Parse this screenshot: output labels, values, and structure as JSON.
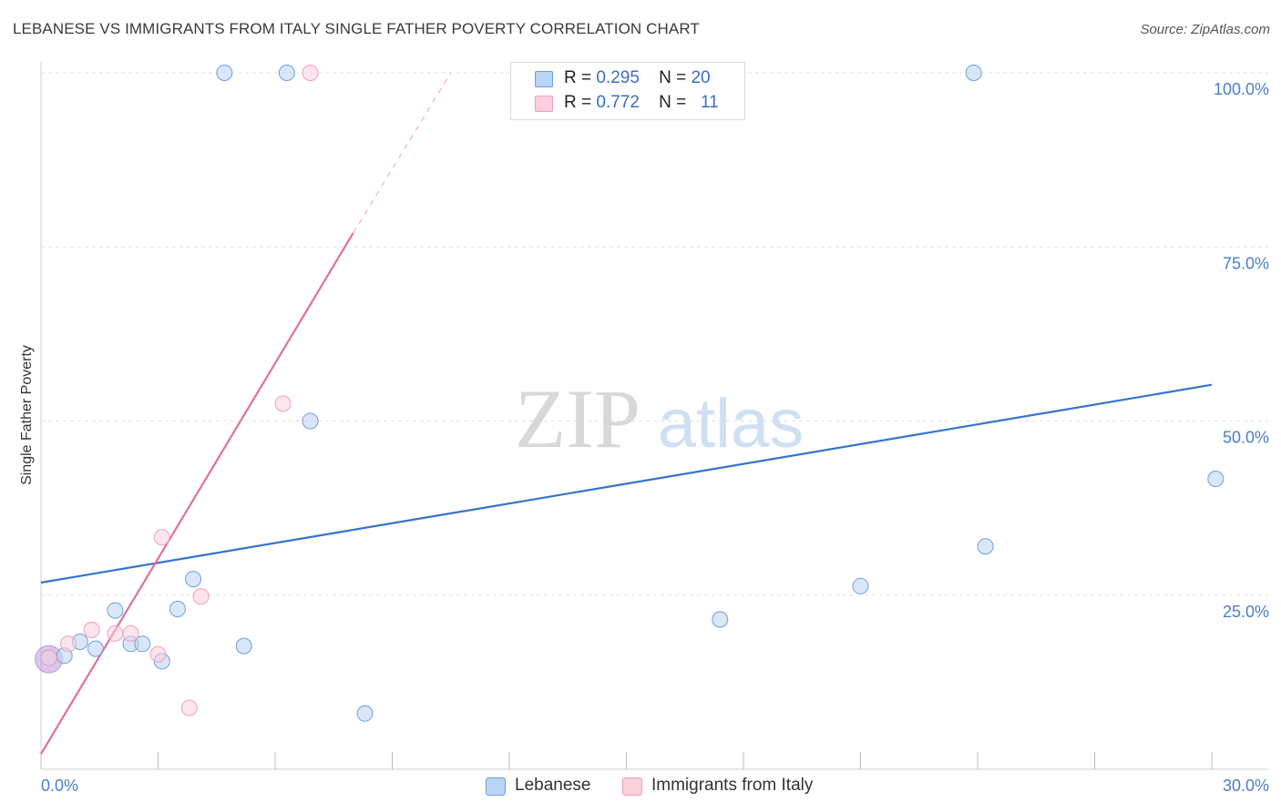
{
  "title": "LEBANESE VS IMMIGRANTS FROM ITALY SINGLE FATHER POVERTY CORRELATION CHART",
  "source": "Source: ZipAtlas.com",
  "watermark": {
    "zip": "ZIP",
    "atlas": "atlas"
  },
  "legend": {
    "r_label": "R =",
    "n_label": "N =",
    "rows": [
      {
        "r": "0.295",
        "n": "20"
      },
      {
        "r": "0.772",
        "n": "11"
      }
    ]
  },
  "chart_data": {
    "type": "scatter",
    "ylabel": "Single Father Poverty",
    "xlim": [
      0,
      30
    ],
    "ylim": [
      0,
      100
    ],
    "x_tick_labels": [
      "0.0%",
      "30.0%"
    ],
    "y_ticks": [
      25,
      50,
      75,
      100
    ],
    "y_tick_labels": [
      "25.0%",
      "50.0%",
      "75.0%",
      "100.0%"
    ],
    "grid": true,
    "legend_position": "top-center",
    "series": [
      {
        "name": "Lebanese",
        "color": "#6b9fe0",
        "trend_color": "#3573d0",
        "points": [
          [
            0.2,
            16.0
          ],
          [
            0.6,
            16.3
          ],
          [
            1.0,
            18.3
          ],
          [
            1.4,
            17.3
          ],
          [
            1.9,
            22.8
          ],
          [
            2.3,
            18.0
          ],
          [
            2.6,
            18.0
          ],
          [
            3.1,
            15.5
          ],
          [
            3.5,
            23.0
          ],
          [
            3.9,
            27.3
          ],
          [
            4.7,
            100.0
          ],
          [
            5.2,
            17.7
          ],
          [
            6.3,
            100.0
          ],
          [
            6.9,
            50.0
          ],
          [
            8.3,
            8.0
          ],
          [
            17.4,
            21.5
          ],
          [
            21.0,
            26.3
          ],
          [
            23.9,
            100.0
          ],
          [
            24.2,
            32.0
          ],
          [
            30.1,
            41.7
          ]
        ],
        "trend": {
          "x": [
            0.0,
            30.0
          ],
          "y": [
            26.8,
            55.2
          ]
        }
      },
      {
        "name": "Immigrants from Italy",
        "color": "#f0a0b8",
        "trend_color": "#e0709a",
        "points": [
          [
            0.2,
            16.0
          ],
          [
            0.7,
            18.0
          ],
          [
            1.3,
            20.0
          ],
          [
            1.9,
            19.5
          ],
          [
            2.3,
            19.5
          ],
          [
            3.0,
            16.5
          ],
          [
            3.1,
            33.3
          ],
          [
            3.8,
            8.8
          ],
          [
            4.1,
            24.8
          ],
          [
            6.2,
            52.5
          ],
          [
            6.9,
            100.0
          ]
        ],
        "trend": {
          "x": [
            0.0,
            8.0
          ],
          "y": [
            2.2,
            77.0
          ]
        },
        "trend_dashed": {
          "x": [
            8.0,
            10.5
          ],
          "y": [
            77.0,
            100.0
          ]
        }
      }
    ]
  }
}
